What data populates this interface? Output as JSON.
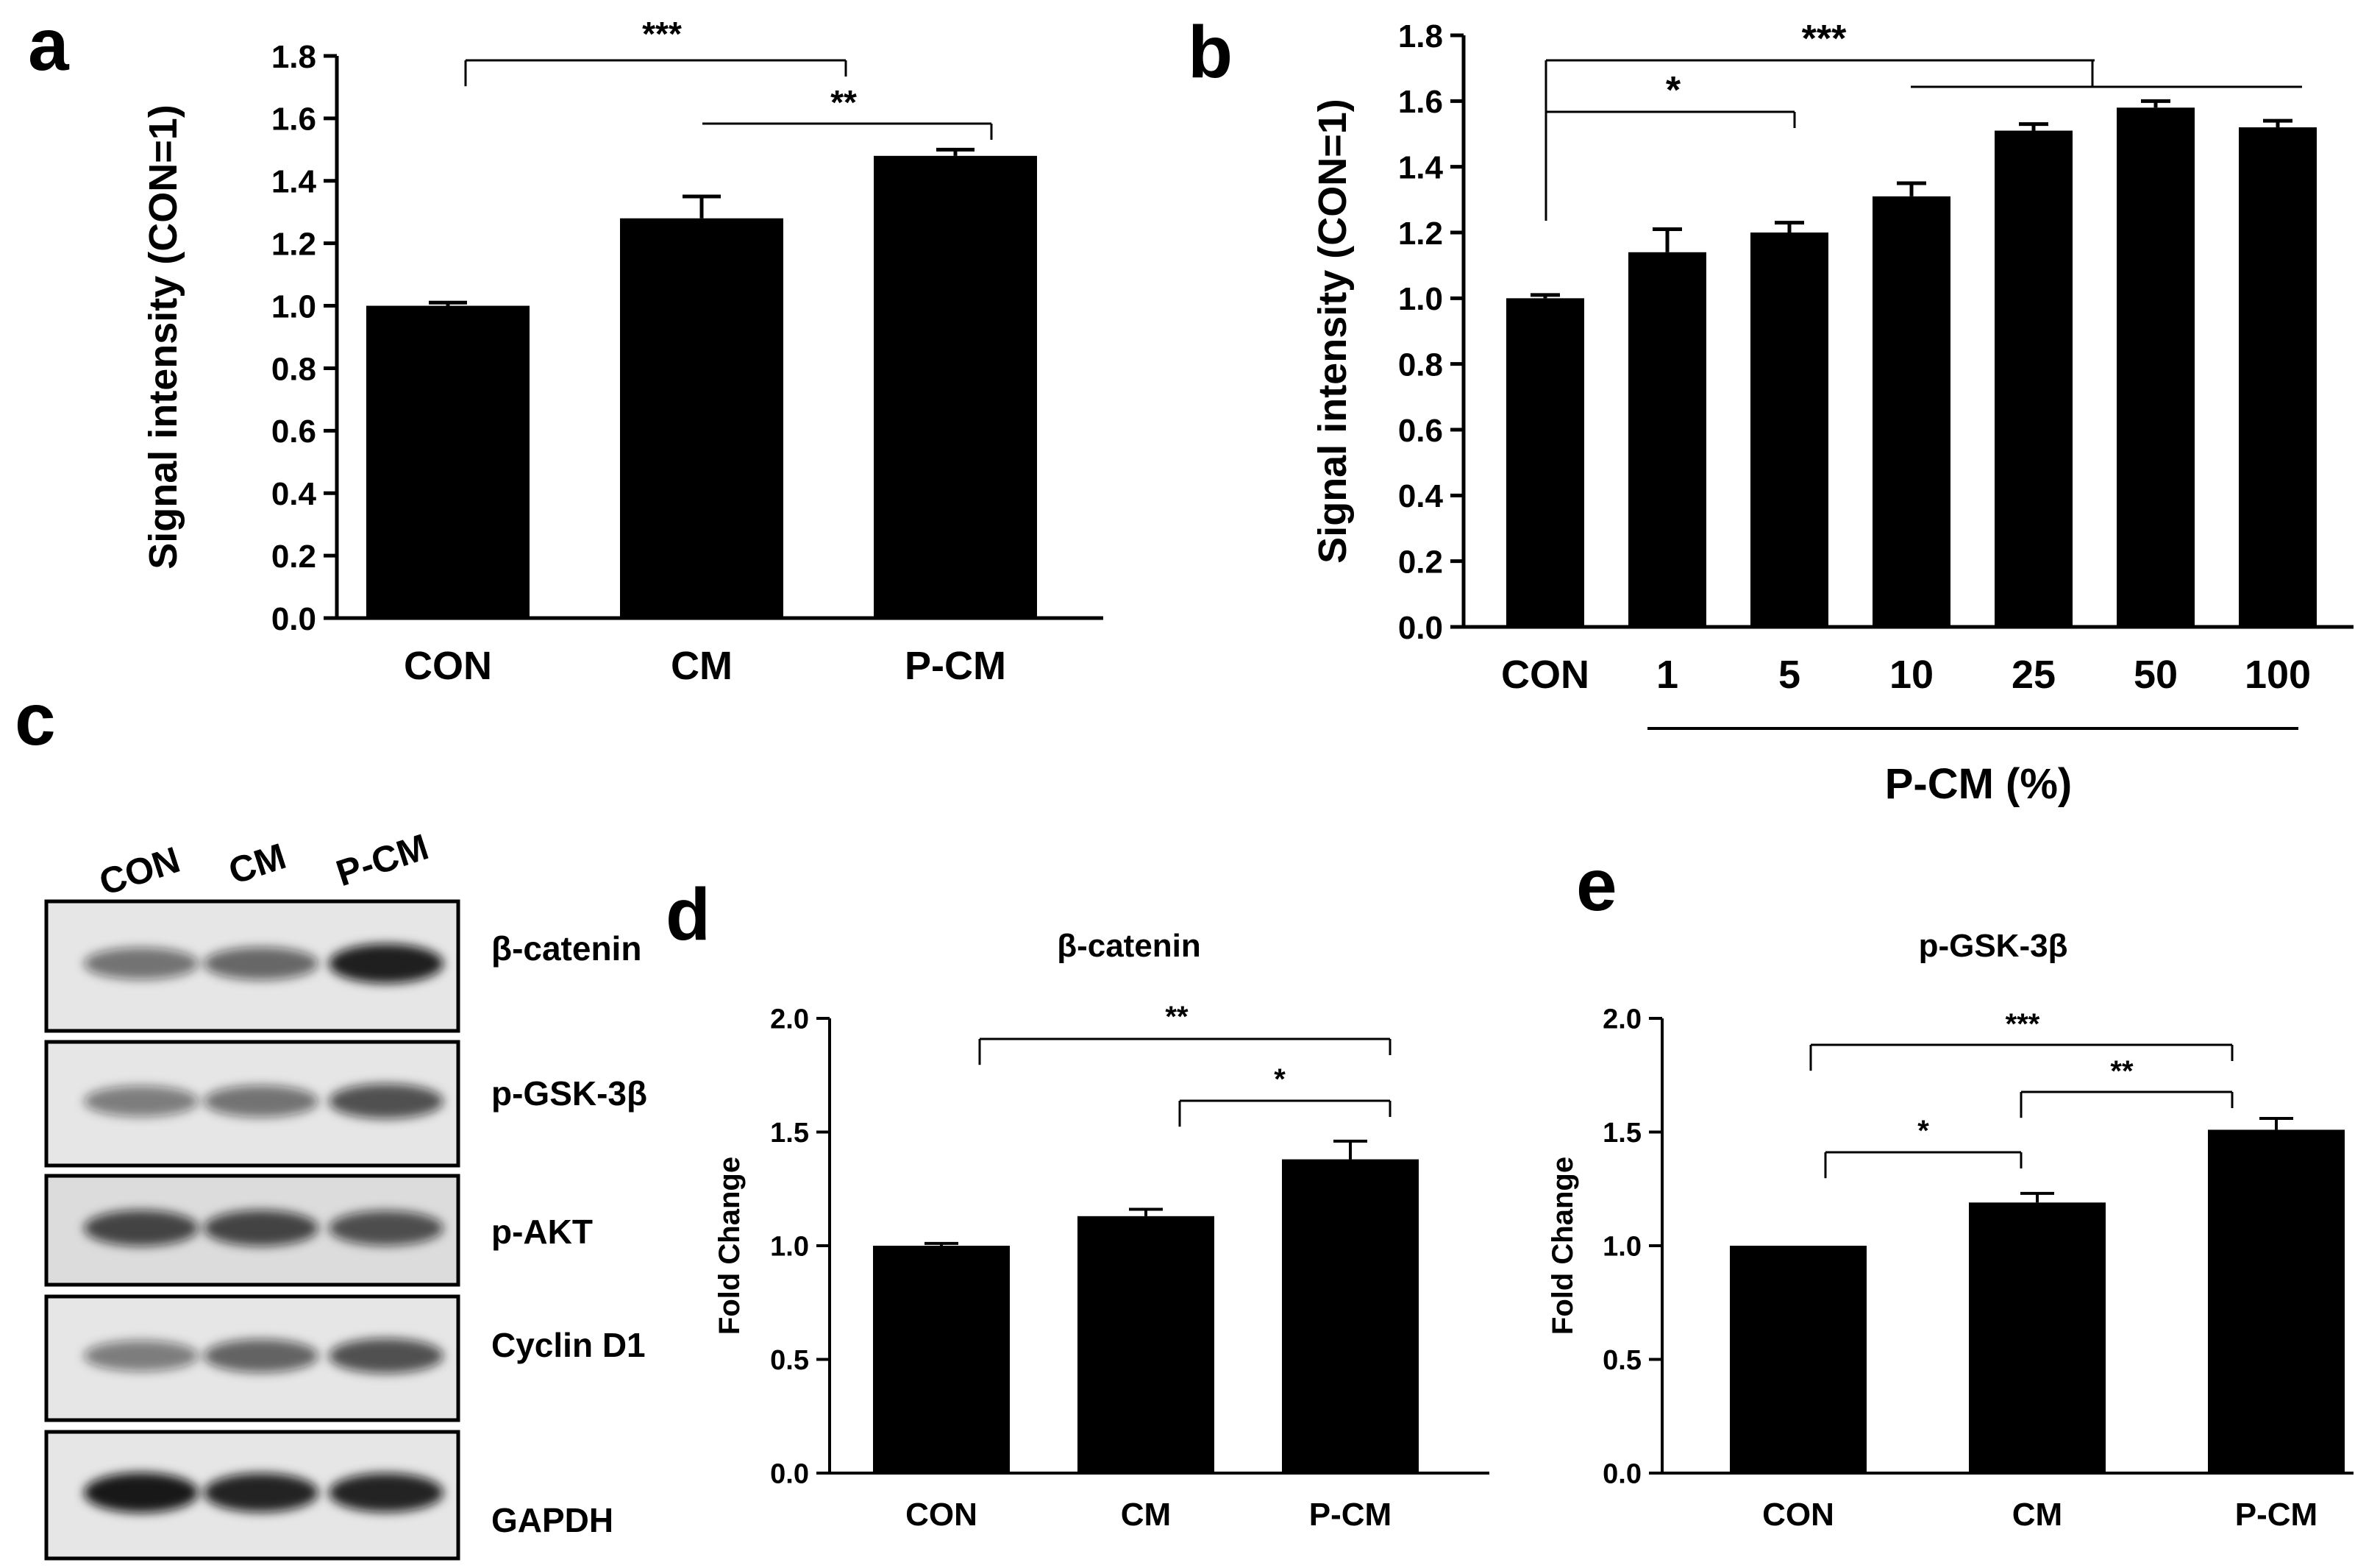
{
  "panel_labels": {
    "a": "a",
    "b": "b",
    "c": "c",
    "d": "d",
    "e": "e"
  },
  "western_blot": {
    "lanes": [
      "CON",
      "CM",
      "P-CM"
    ],
    "bands": [
      "β-catenin",
      "p-GSK-3β",
      "p-AKT",
      "Cyclin D1",
      "GAPDH"
    ]
  },
  "chart_data": [
    {
      "id": "a",
      "type": "bar",
      "title": "",
      "xlabel": "",
      "ylabel": "Signal intensity (CON=1)",
      "categories": [
        "CON",
        "CM",
        "P-CM"
      ],
      "values": [
        1.0,
        1.28,
        1.48
      ],
      "errors": [
        0.01,
        0.07,
        0.02
      ],
      "ylim": [
        0,
        1.8
      ],
      "yticks": [
        "0.0",
        "0.2",
        "0.4",
        "0.6",
        "0.8",
        "1.0",
        "1.2",
        "1.4",
        "1.6",
        "1.8"
      ],
      "significance": [
        {
          "from": 0,
          "to": 2,
          "label": "***"
        },
        {
          "from": 1,
          "to": 2,
          "label": "**"
        }
      ]
    },
    {
      "id": "b",
      "type": "bar",
      "title": "",
      "xlabel": "P-CM (%)",
      "ylabel": "Signal intensity (CON=1)",
      "categories": [
        "CON",
        "1",
        "5",
        "10",
        "25",
        "50",
        "100"
      ],
      "values": [
        1.0,
        1.14,
        1.2,
        1.31,
        1.51,
        1.58,
        1.52
      ],
      "errors": [
        0.01,
        0.07,
        0.03,
        0.04,
        0.02,
        0.02,
        0.02
      ],
      "ylim": [
        0,
        1.8
      ],
      "yticks": [
        "0.0",
        "0.2",
        "0.4",
        "0.6",
        "0.8",
        "1.0",
        "1.2",
        "1.4",
        "1.6",
        "1.8"
      ],
      "significance": [
        {
          "from": 0,
          "to": 2,
          "label": "*"
        },
        {
          "from": 0,
          "to": [
            3,
            6
          ],
          "label": "***"
        }
      ]
    },
    {
      "id": "d",
      "type": "bar",
      "title": "β-catenin",
      "xlabel": "",
      "ylabel": "Fold Change",
      "categories": [
        "CON",
        "CM",
        "P-CM"
      ],
      "values": [
        1.0,
        1.13,
        1.38
      ],
      "errors": [
        0.01,
        0.03,
        0.08
      ],
      "ylim": [
        0,
        2.0
      ],
      "yticks": [
        "0.0",
        "0.5",
        "1.0",
        "1.5",
        "2.0"
      ],
      "significance": [
        {
          "from": 0,
          "to": 2,
          "label": "**"
        },
        {
          "from": 1,
          "to": 2,
          "label": "*"
        }
      ]
    },
    {
      "id": "e",
      "type": "bar",
      "title": "p-GSK-3β",
      "xlabel": "",
      "ylabel": "Fold Change",
      "categories": [
        "CON",
        "CM",
        "P-CM"
      ],
      "values": [
        1.0,
        1.19,
        1.51
      ],
      "errors": [
        0.0,
        0.04,
        0.05
      ],
      "ylim": [
        0,
        2.0
      ],
      "yticks": [
        "0.0",
        "0.5",
        "1.0",
        "1.5",
        "2.0"
      ],
      "significance": [
        {
          "from": 0,
          "to": 2,
          "label": "***"
        },
        {
          "from": 1,
          "to": 2,
          "label": "**"
        },
        {
          "from": 0,
          "to": 1,
          "label": "*"
        }
      ]
    }
  ]
}
